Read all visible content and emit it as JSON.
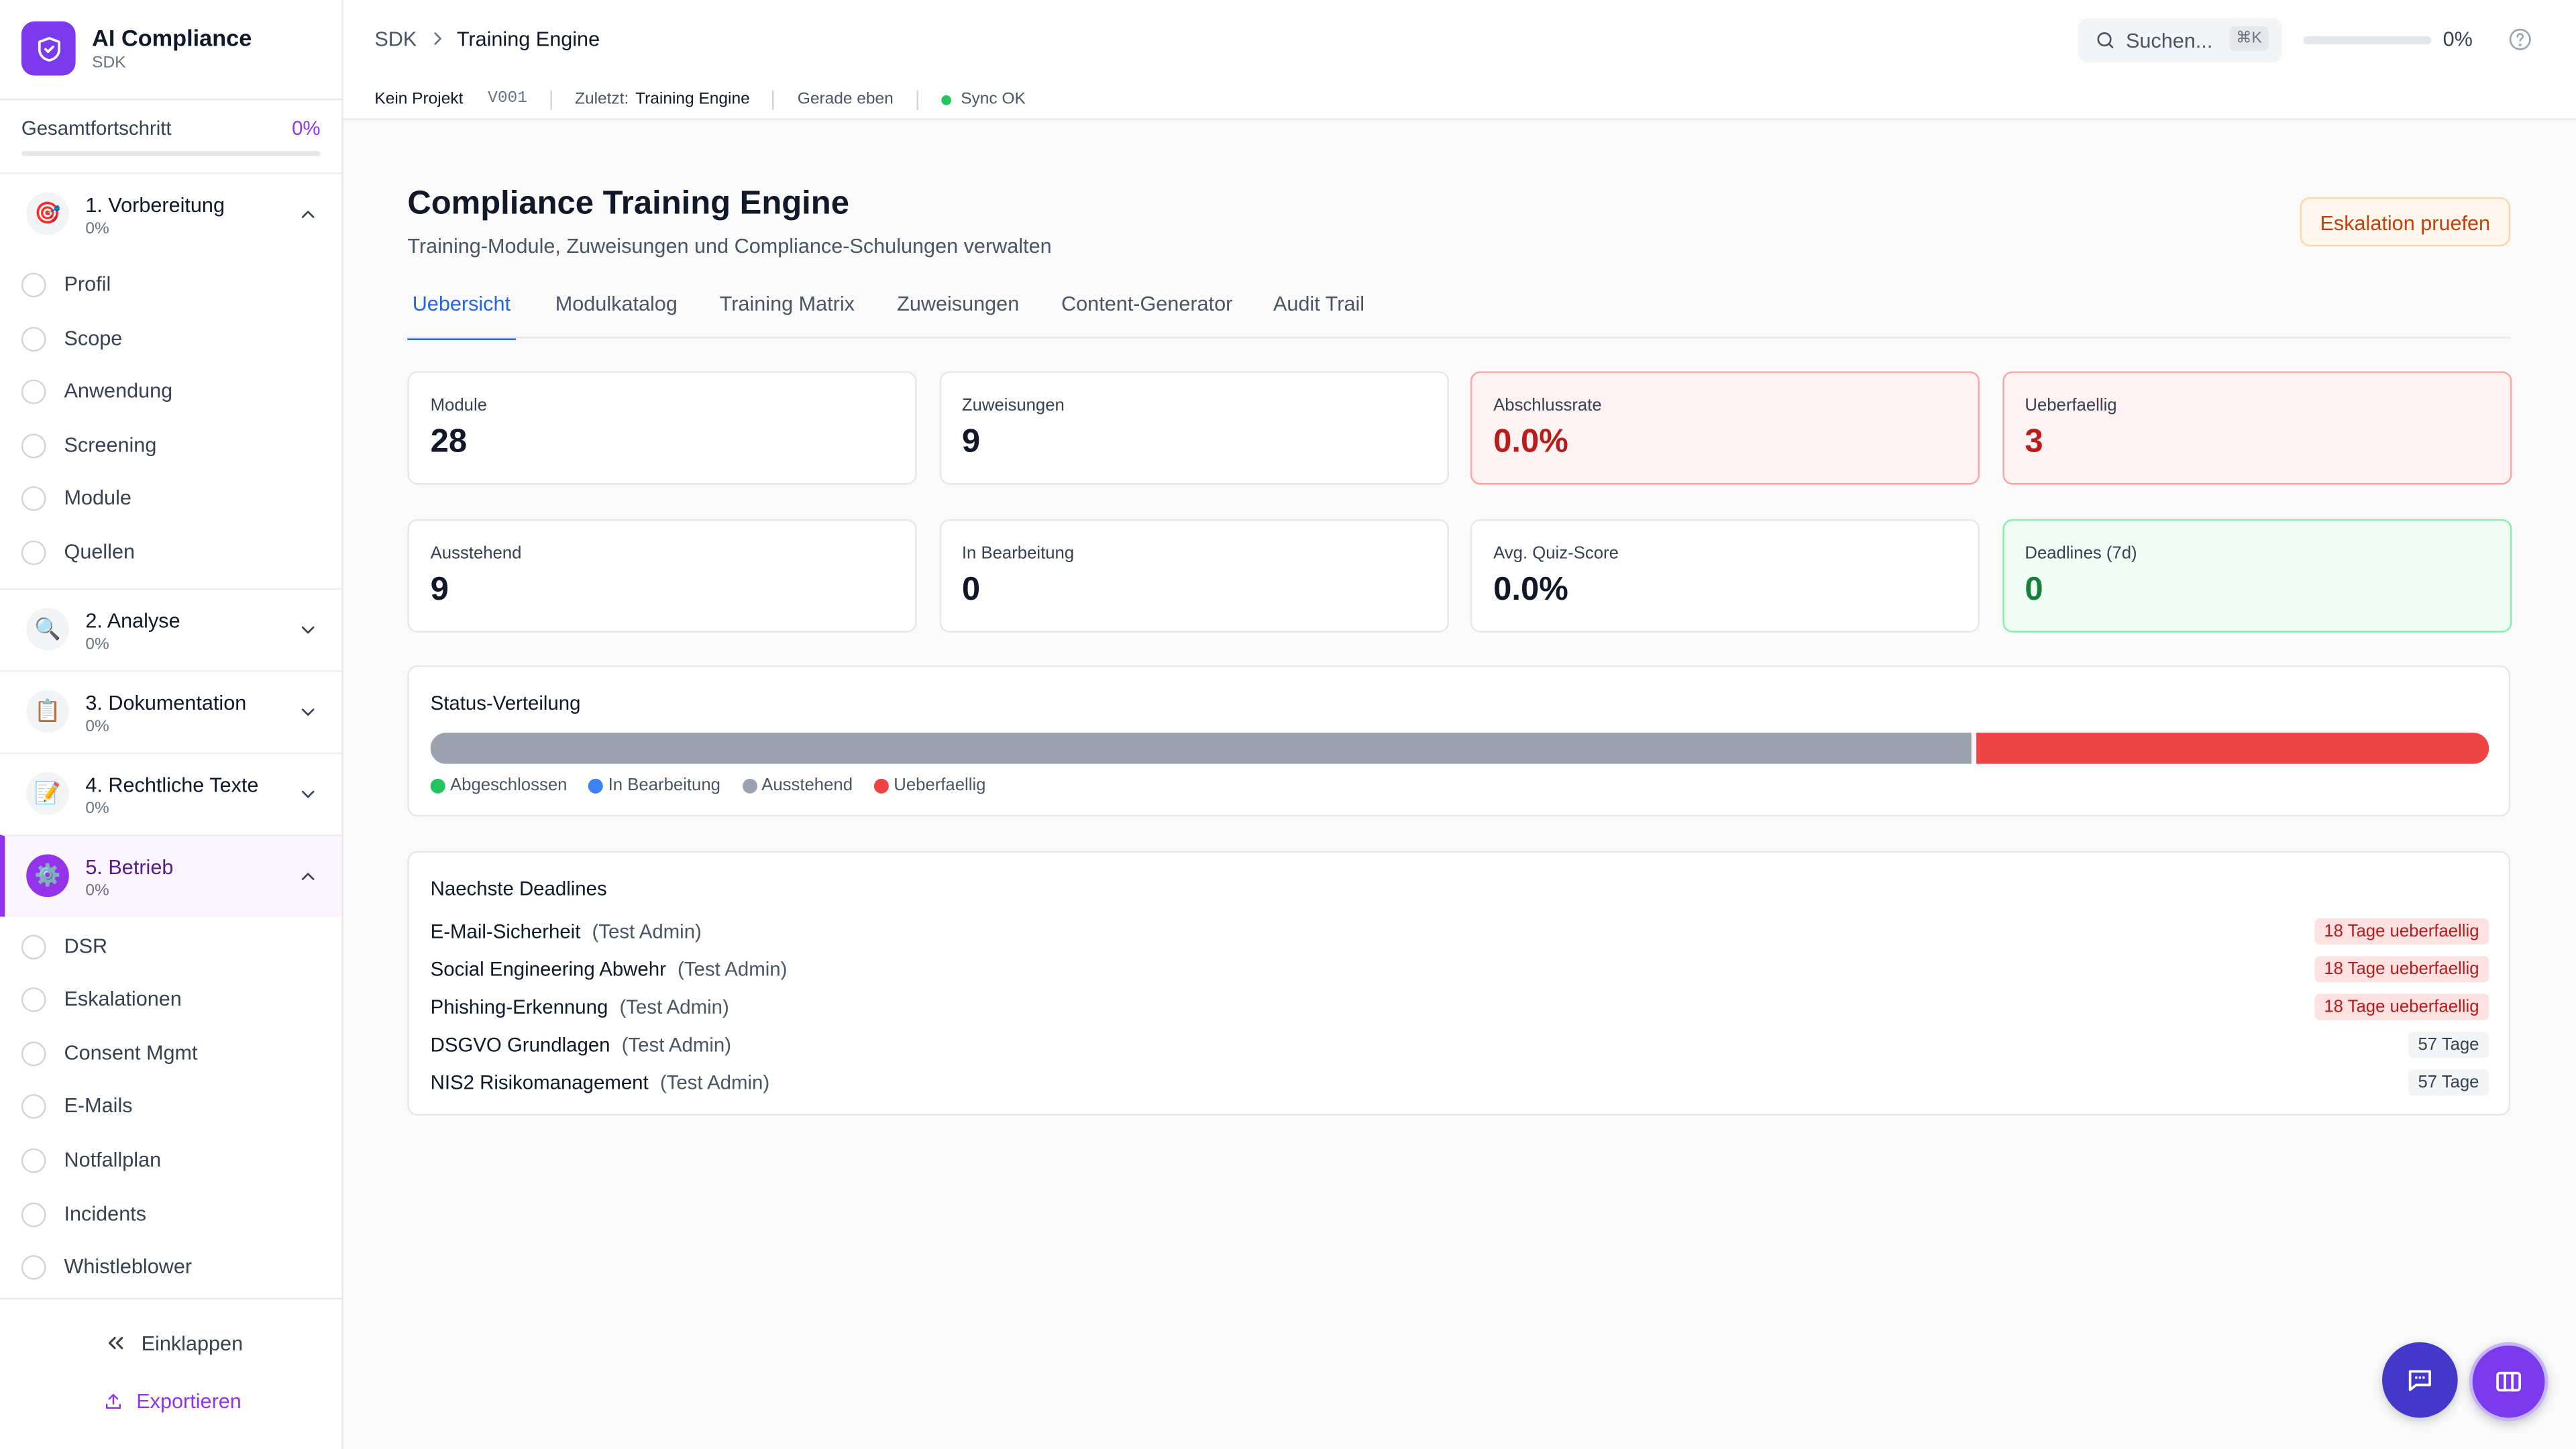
{
  "sidebar": {
    "brand": {
      "title": "AI Compliance",
      "subtitle": "SDK"
    },
    "progress": {
      "label": "Gesamtfortschritt",
      "value": "0%"
    },
    "sections": [
      {
        "icon": "🎯",
        "title": "1. Vorbereitung",
        "progress": "0%",
        "expanded": true,
        "active": false,
        "items": [
          "Profil",
          "Scope",
          "Anwendung",
          "Screening",
          "Module",
          "Quellen"
        ]
      },
      {
        "icon": "🔍",
        "title": "2. Analyse",
        "progress": "0%",
        "expanded": false,
        "active": false,
        "items": []
      },
      {
        "icon": "📋",
        "title": "3. Dokumentation",
        "progress": "0%",
        "expanded": false,
        "active": false,
        "items": []
      },
      {
        "icon": "📝",
        "title": "4. Rechtliche Texte",
        "progress": "0%",
        "expanded": false,
        "active": false,
        "items": []
      },
      {
        "icon": "⚙️",
        "title": "5. Betrieb",
        "progress": "0%",
        "expanded": true,
        "active": true,
        "items": [
          "DSR",
          "Eskalationen",
          "Consent Mgmt",
          "E-Mails",
          "Notfallplan",
          "Incidents",
          "Whistleblower"
        ]
      }
    ],
    "footer": {
      "collapse": "Einklappen",
      "export": "Exportieren"
    }
  },
  "topbar": {
    "breadcrumb": [
      "SDK",
      "Training Engine"
    ],
    "search": "Suchen...",
    "shortcut": "⌘K",
    "progress": "0%"
  },
  "statusbar": {
    "project": "Kein Projekt",
    "version": "V001",
    "last_label": "Zuletzt:",
    "last_value": "Training Engine",
    "time": "Gerade eben",
    "sync": "Sync OK"
  },
  "page": {
    "title": "Compliance Training Engine",
    "subtitle": "Training-Module, Zuweisungen und Compliance-Schulungen verwalten",
    "action": "Eskalation pruefen",
    "tabs": [
      "Uebersicht",
      "Modulkatalog",
      "Training Matrix",
      "Zuweisungen",
      "Content-Generator",
      "Audit Trail"
    ],
    "active_tab": 0,
    "stats": [
      {
        "label": "Module",
        "value": "28",
        "tone": "neutral"
      },
      {
        "label": "Zuweisungen",
        "value": "9",
        "tone": "neutral"
      },
      {
        "label": "Abschlussrate",
        "value": "0.0%",
        "tone": "red"
      },
      {
        "label": "Ueberfaellig",
        "value": "3",
        "tone": "red"
      },
      {
        "label": "Ausstehend",
        "value": "9",
        "tone": "neutral"
      },
      {
        "label": "In Bearbeitung",
        "value": "0",
        "tone": "neutral"
      },
      {
        "label": "Avg. Quiz-Score",
        "value": "0.0%",
        "tone": "neutral"
      },
      {
        "label": "Deadlines (7d)",
        "value": "0",
        "tone": "green"
      }
    ],
    "status": {
      "title": "Status-Verteilung",
      "segments": [
        {
          "name": "Abgeschlossen",
          "color": "#22c55e",
          "value": 0
        },
        {
          "name": "In Bearbeitung",
          "color": "#3b82f6",
          "value": 0
        },
        {
          "name": "Ausstehend",
          "color": "#9ca3af",
          "value": 9
        },
        {
          "name": "Ueberfaellig",
          "color": "#ef4444",
          "value": 3
        }
      ]
    },
    "deadlines": {
      "title": "Naechste Deadlines",
      "rows": [
        {
          "module": "E-Mail-Sicherheit",
          "assignee": "(Test Admin)",
          "badge": "18 Tage ueberfaellig",
          "overdue": true
        },
        {
          "module": "Social Engineering Abwehr",
          "assignee": "(Test Admin)",
          "badge": "18 Tage ueberfaellig",
          "overdue": true
        },
        {
          "module": "Phishing-Erkennung",
          "assignee": "(Test Admin)",
          "badge": "18 Tage ueberfaellig",
          "overdue": true
        },
        {
          "module": "DSGVO Grundlagen",
          "assignee": "(Test Admin)",
          "badge": "57 Tage",
          "overdue": false
        },
        {
          "module": "NIS2 Risikomanagement",
          "assignee": "(Test Admin)",
          "badge": "57 Tage",
          "overdue": false
        }
      ]
    }
  }
}
